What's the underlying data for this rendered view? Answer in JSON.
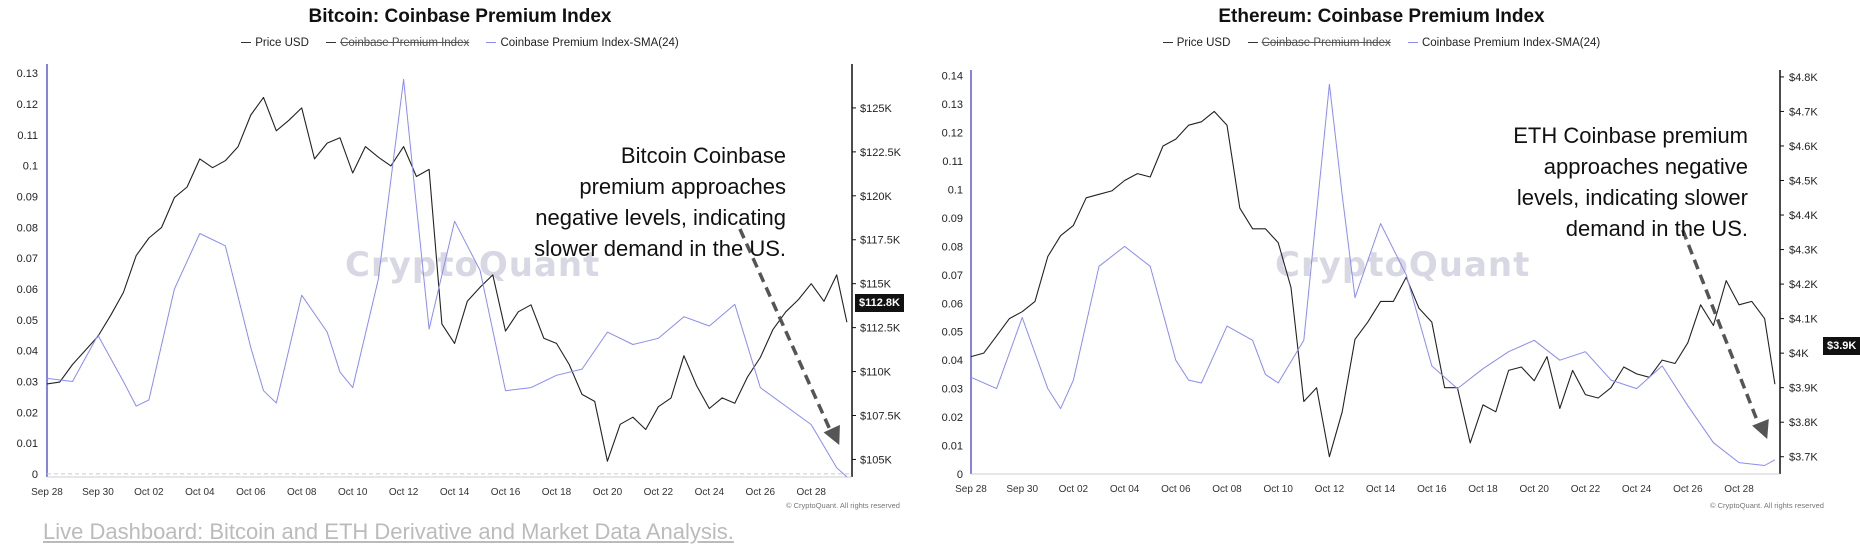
{
  "footer_link": "Live Dashboard: Bitcoin and ETH Derivative and Market Data Analysis.",
  "colors": {
    "price": "#222222",
    "sma": "#8a8cf0",
    "arrow": "#555555",
    "axis": "#5b5bd6"
  },
  "chart_data": [
    {
      "type": "line",
      "title": "Bitcoin: Coinbase Premium Index",
      "legend": [
        "Price USD",
        "Coinbase Premium Index",
        "Coinbase Premium Index-SMA(24)"
      ],
      "watermark": "CryptoQuant",
      "copyright": "© CryptoQuant. All rights reserved",
      "annotation": "Bitcoin Coinbase premium approaches negative levels, indicating slower demand in the US.",
      "annotation_lines": [
        "Bitcoin Coinbase",
        "premium approaches",
        "negative levels, indicating",
        "slower demand in the US."
      ],
      "current_price_label": "$112.8K",
      "x_ticks": [
        "Sep 28",
        "Sep 30",
        "Oct 02",
        "Oct 04",
        "Oct 06",
        "Oct 08",
        "Oct 10",
        "Oct 12",
        "Oct 14",
        "Oct 16",
        "Oct 18",
        "Oct 20",
        "Oct 22",
        "Oct 24",
        "Oct 26",
        "Oct 28"
      ],
      "x_range_days": [
        0,
        31.6
      ],
      "y_left_ticks": [
        "0",
        "0.01",
        "0.02",
        "0.03",
        "0.04",
        "0.05",
        "0.06",
        "0.07",
        "0.08",
        "0.09",
        "0.1",
        "0.11",
        "0.12",
        "0.13"
      ],
      "y_left_range": [
        -0.001,
        0.133
      ],
      "y_right_ticks": [
        "$105K",
        "$107.5K",
        "$110K",
        "$112.5K",
        "$115K",
        "$117.5K",
        "$120K",
        "$122.5K",
        "$125K"
      ],
      "y_right_range": [
        104000,
        127500
      ],
      "series": [
        {
          "name": "Price USD",
          "axis": "right",
          "x": [
            0,
            0.5,
            1,
            1.5,
            2,
            2.5,
            3,
            3.5,
            4,
            4.5,
            5,
            5.5,
            6,
            6.5,
            7,
            7.5,
            8,
            8.5,
            9,
            9.5,
            10,
            10.5,
            11,
            11.5,
            12,
            12.5,
            13,
            13.5,
            14,
            14.5,
            15,
            15.5,
            16,
            16.5,
            17,
            17.5,
            18,
            18.5,
            19,
            19.5,
            20,
            20.5,
            21,
            21.5,
            22,
            22.5,
            23,
            23.5,
            24,
            24.5,
            25,
            25.5,
            26,
            26.5,
            27,
            27.5,
            28,
            28.5,
            29,
            29.5,
            30,
            30.5,
            31,
            31.4
          ],
          "values": [
            109300,
            109400,
            110400,
            111200,
            112000,
            113200,
            114500,
            116600,
            117600,
            118200,
            119900,
            120500,
            122100,
            121600,
            122000,
            122800,
            124600,
            125600,
            123700,
            124300,
            125000,
            122100,
            123000,
            123300,
            121300,
            122800,
            122200,
            121700,
            122800,
            121100,
            121500,
            112700,
            111600,
            114000,
            114800,
            115500,
            112300,
            113400,
            113800,
            111900,
            111600,
            110400,
            108700,
            108300,
            104900,
            107000,
            107400,
            106700,
            108000,
            108500,
            110900,
            109200,
            107900,
            108500,
            108200,
            109700,
            110800,
            112400,
            113400,
            114100,
            115000,
            114000,
            115500,
            112800
          ]
        },
        {
          "name": "Coinbase Premium Index-SMA(24)",
          "axis": "left",
          "x": [
            0,
            1,
            2,
            3,
            3.5,
            4,
            5,
            6,
            7,
            8,
            8.5,
            9,
            10,
            11,
            11.5,
            12,
            13,
            14,
            14.5,
            15,
            16,
            17,
            18,
            19,
            20,
            21,
            22,
            23,
            24,
            25,
            26,
            27,
            28,
            29,
            30,
            31,
            31.4
          ],
          "values": [
            0.031,
            0.03,
            0.045,
            0.03,
            0.022,
            0.024,
            0.06,
            0.078,
            0.074,
            0.041,
            0.027,
            0.023,
            0.058,
            0.046,
            0.033,
            0.028,
            0.063,
            0.128,
            0.087,
            0.047,
            0.082,
            0.066,
            0.027,
            0.028,
            0.032,
            0.034,
            0.046,
            0.042,
            0.044,
            0.051,
            0.048,
            0.055,
            0.028,
            0.022,
            0.016,
            0.002,
            -0.001
          ]
        }
      ]
    },
    {
      "type": "line",
      "title": "Ethereum: Coinbase Premium Index",
      "legend": [
        "Price USD",
        "Coinbase Premium Index",
        "Coinbase Premium Index-SMA(24)"
      ],
      "watermark": "CryptoQuant",
      "copyright": "© CryptoQuant. All rights reserved",
      "annotation": "ETH Coinbase premium approaches negative levels, indicating slower demand in the US.",
      "annotation_lines": [
        "ETH Coinbase premium",
        "approaches negative",
        "levels, indicating slower",
        "demand in the US."
      ],
      "current_price_label": "$3.9K",
      "x_ticks": [
        "Sep 28",
        "Sep 30",
        "Oct 02",
        "Oct 04",
        "Oct 06",
        "Oct 08",
        "Oct 10",
        "Oct 12",
        "Oct 14",
        "Oct 16",
        "Oct 18",
        "Oct 20",
        "Oct 22",
        "Oct 24",
        "Oct 26",
        "Oct 28"
      ],
      "x_range_days": [
        0,
        31.6
      ],
      "y_left_ticks": [
        "0",
        "0.01",
        "0.02",
        "0.03",
        "0.04",
        "0.05",
        "0.06",
        "0.07",
        "0.08",
        "0.09",
        "0.1",
        "0.11",
        "0.12",
        "0.13",
        "0.14"
      ],
      "y_left_range": [
        0,
        0.142
      ],
      "y_right_ticks": [
        "$3.7K",
        "$3.8K",
        "$3.9K",
        "$4K",
        "$4.1K",
        "$4.2K",
        "$4.3K",
        "$4.4K",
        "$4.5K",
        "$4.6K",
        "$4.7K",
        "$4.8K"
      ],
      "y_right_range": [
        3650,
        4820
      ],
      "series": [
        {
          "name": "Price USD",
          "axis": "right",
          "x": [
            0,
            0.5,
            1,
            1.5,
            2,
            2.5,
            3,
            3.5,
            4,
            4.5,
            5,
            5.5,
            6,
            6.5,
            7,
            7.5,
            8,
            8.5,
            9,
            9.5,
            10,
            10.5,
            11,
            11.5,
            12,
            12.5,
            13,
            13.5,
            14,
            14.5,
            15,
            15.5,
            16,
            16.5,
            17,
            17.5,
            18,
            18.5,
            19,
            19.5,
            20,
            20.5,
            21,
            21.5,
            22,
            22.5,
            23,
            23.5,
            24,
            24.5,
            25,
            25.5,
            26,
            26.5,
            27,
            27.5,
            28,
            28.5,
            29,
            29.5,
            30,
            30.5,
            31,
            31.4
          ],
          "values": [
            3990,
            4000,
            4050,
            4100,
            4120,
            4150,
            4280,
            4340,
            4370,
            4450,
            4460,
            4470,
            4500,
            4520,
            4510,
            4600,
            4620,
            4660,
            4670,
            4700,
            4660,
            4420,
            4360,
            4360,
            4320,
            4190,
            3860,
            3900,
            3700,
            3830,
            4040,
            4090,
            4150,
            4150,
            4220,
            4130,
            4090,
            3900,
            3900,
            3740,
            3850,
            3830,
            3950,
            3960,
            3920,
            3990,
            3840,
            3950,
            3880,
            3870,
            3900,
            3960,
            3940,
            3930,
            3980,
            3970,
            4030,
            4140,
            4080,
            4210,
            4140,
            4150,
            4100,
            3910
          ]
        },
        {
          "name": "Coinbase Premium Index-SMA(24)",
          "axis": "left",
          "x": [
            0,
            1,
            2,
            3,
            3.5,
            4,
            5,
            6,
            7,
            8,
            8.5,
            9,
            10,
            11,
            11.5,
            12,
            13,
            14,
            14.5,
            15,
            16,
            17,
            18,
            19,
            20,
            21,
            22,
            23,
            24,
            25,
            26,
            27,
            28,
            29,
            30,
            31,
            31.4
          ],
          "values": [
            0.034,
            0.03,
            0.055,
            0.03,
            0.023,
            0.033,
            0.073,
            0.08,
            0.073,
            0.04,
            0.033,
            0.032,
            0.052,
            0.047,
            0.035,
            0.032,
            0.047,
            0.137,
            0.098,
            0.062,
            0.088,
            0.07,
            0.038,
            0.03,
            0.037,
            0.043,
            0.047,
            0.04,
            0.043,
            0.033,
            0.03,
            0.038,
            0.024,
            0.011,
            0.004,
            0.003,
            0.005
          ]
        }
      ]
    }
  ]
}
